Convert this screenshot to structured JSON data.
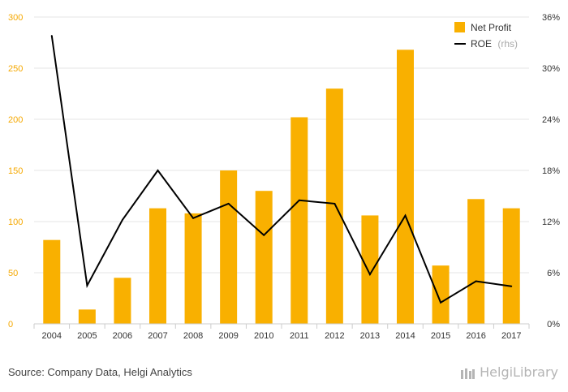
{
  "chart_data": {
    "type": "bar",
    "categories": [
      "2004",
      "2005",
      "2006",
      "2007",
      "2008",
      "2009",
      "2010",
      "2011",
      "2012",
      "2013",
      "2014",
      "2015",
      "2016",
      "2017"
    ],
    "series": [
      {
        "name": "Net Profit",
        "type": "bar",
        "axis": "left",
        "color": "#f9b000",
        "values": [
          82,
          14,
          45,
          113,
          108,
          150,
          130,
          202,
          230,
          106,
          268,
          57,
          122,
          113
        ]
      },
      {
        "name": "ROE",
        "legend_suffix": "(rhs)",
        "type": "line",
        "axis": "right",
        "color": "#000000",
        "values": [
          33.8,
          4.5,
          12.2,
          18.0,
          12.4,
          14.1,
          10.4,
          14.5,
          14.1,
          5.8,
          12.7,
          2.5,
          5.0,
          4.4
        ]
      }
    ],
    "ylim_left": [
      0,
      300
    ],
    "yticks_left": [
      "0",
      "50",
      "100",
      "150",
      "200",
      "250",
      "300"
    ],
    "ylim_right": [
      0,
      36
    ],
    "yticks_right": [
      "0%",
      "6%",
      "12%",
      "18%",
      "24%",
      "30%",
      "36%"
    ],
    "grid": true,
    "legend_position": "top-right"
  },
  "footer": {
    "source": "Source: Company Data, Helgi Analytics",
    "brand": "HelgiLibrary"
  }
}
